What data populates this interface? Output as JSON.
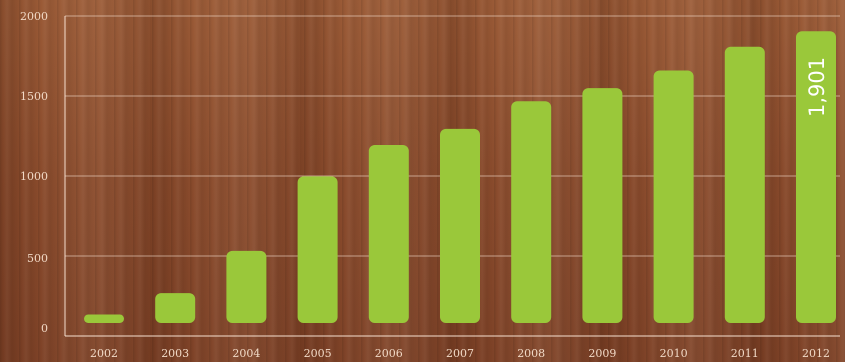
{
  "chart_data": {
    "type": "bar",
    "categories": [
      "2002",
      "2003",
      "2004",
      "2005",
      "2006",
      "2007",
      "2008",
      "2009",
      "2010",
      "2011",
      "2012"
    ],
    "values": [
      55,
      195,
      470,
      955,
      1160,
      1265,
      1445,
      1530,
      1645,
      1800,
      1901
    ],
    "y_ticks": [
      "0",
      "500",
      "1000",
      "1500",
      "2000"
    ],
    "ylim": [
      0,
      2000
    ],
    "grid": true,
    "annotations": [
      {
        "category": "2012",
        "text": "1,901"
      }
    ],
    "colors": {
      "bar": "#9ac83a",
      "text": "#f1d9c6",
      "label": "#ffffff"
    }
  }
}
